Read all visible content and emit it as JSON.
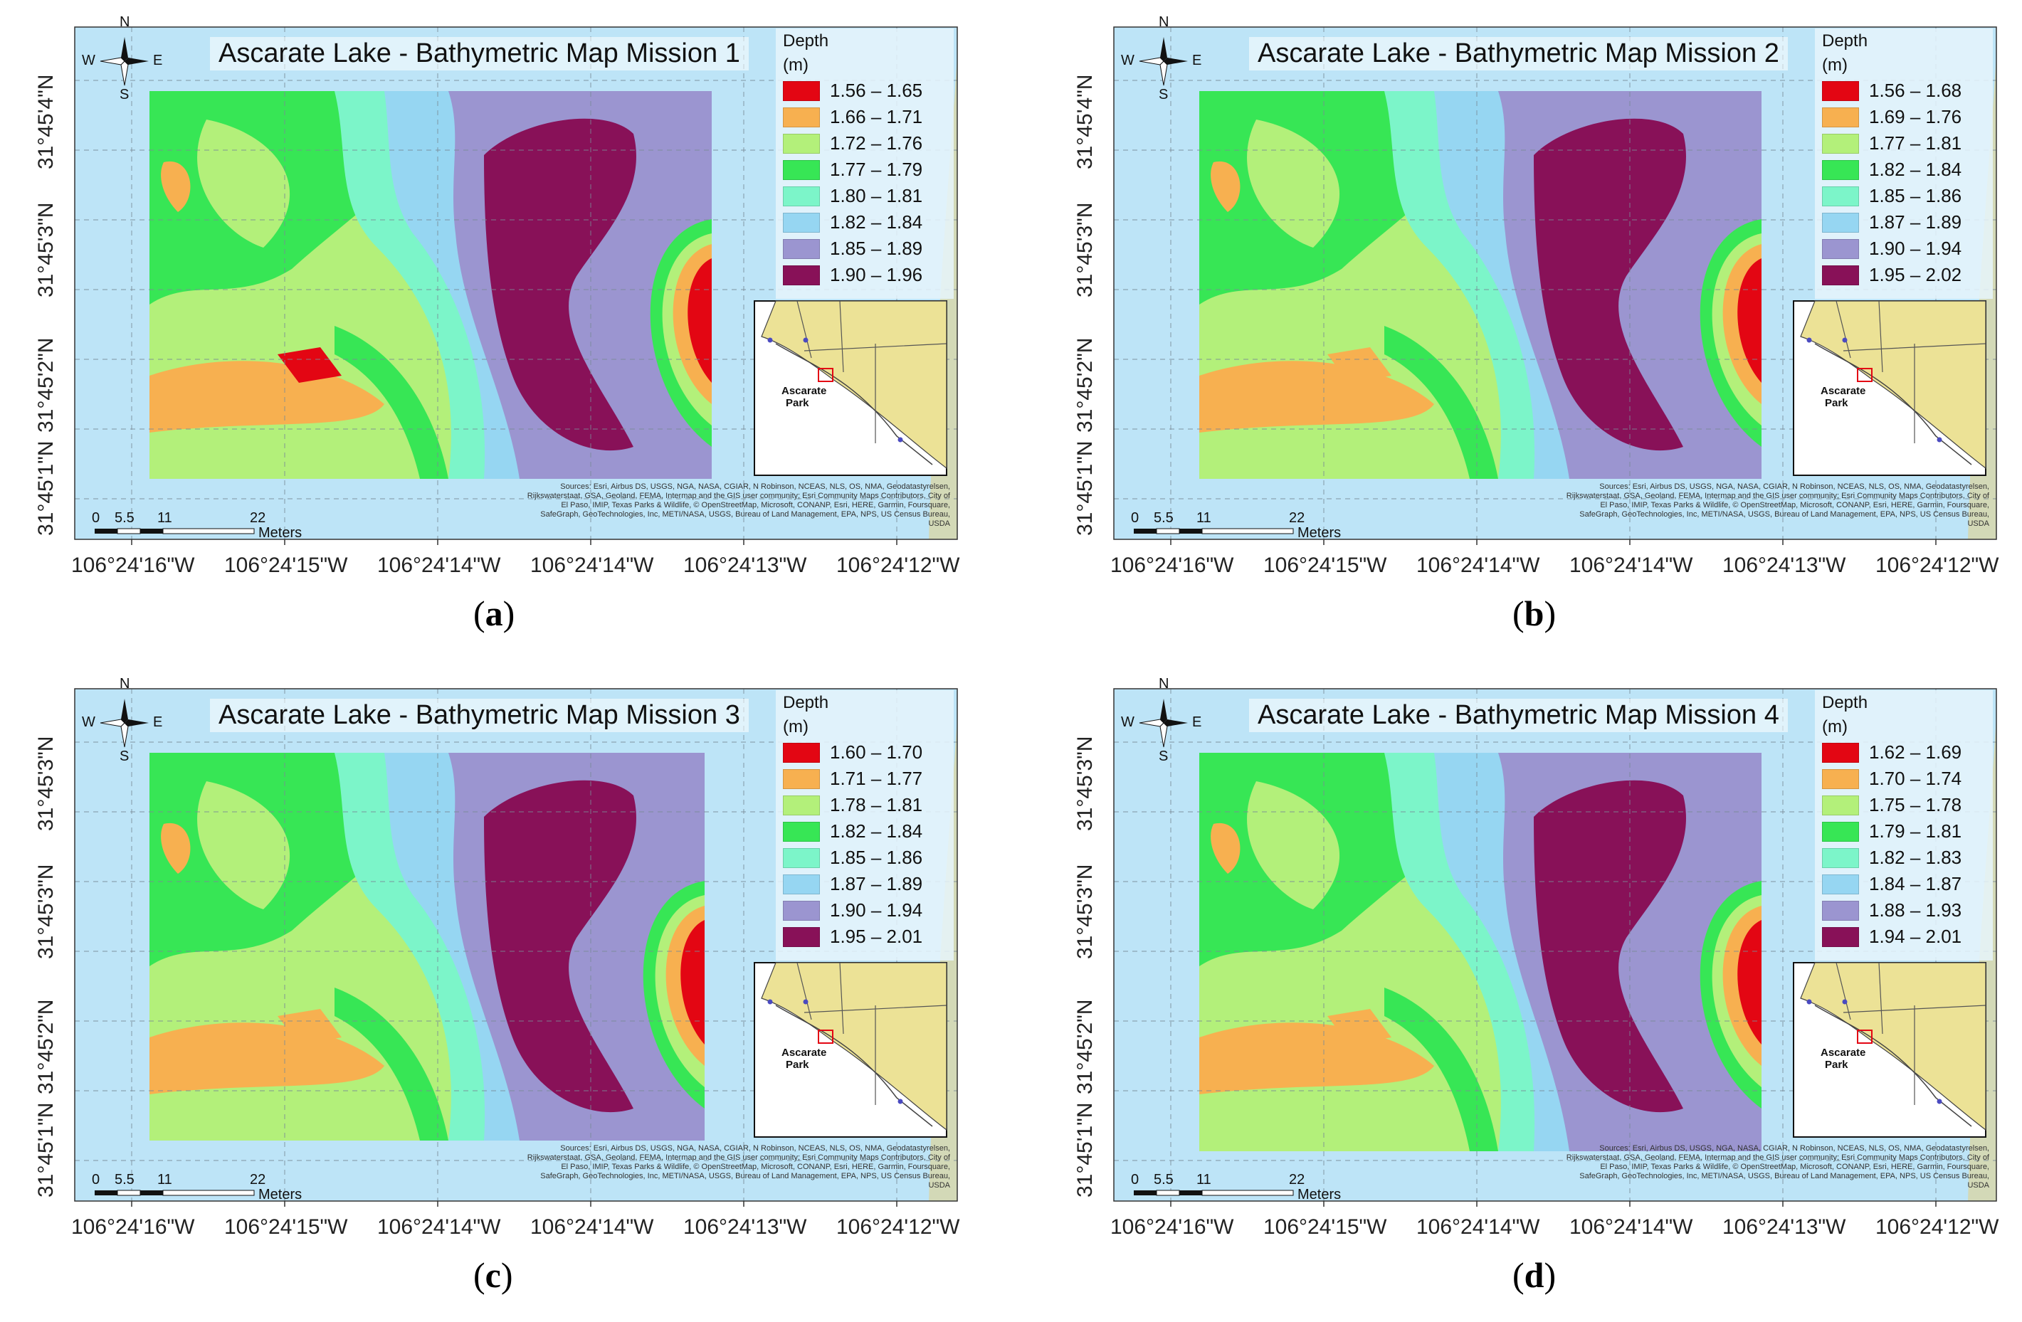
{
  "colors": {
    "water": "#bde4f7",
    "depth_classes": [
      "#e30613",
      "#f7b050",
      "#b3f07a",
      "#37e655",
      "#7cf5c9",
      "#96d6f2",
      "#9b95d0",
      "#881158"
    ],
    "land": "#e8e0a0"
  },
  "compass": {
    "n": "N",
    "s": "S",
    "e": "E",
    "w": "W"
  },
  "scalebar": {
    "ticks": [
      "0",
      "5.5",
      "11",
      "22"
    ],
    "unit": "Meters"
  },
  "inset": {
    "label_line1": "Ascarate",
    "label_line2": "Park"
  },
  "attribution": "Sources: Esri, Airbus DS, USGS, NGA, NASA, CGIAR, N Robinson, NCEAS, NLS, OS, NMA, Geodatastyrelsen, Rijkswaterstaat, GSA, Geoland, FEMA, Intermap and the GIS user community; Esri Community Maps Contributors, City of El Paso, IMIP, Texas Parks & Wildlife, © OpenStreetMap, Microsoft, CONANP, Esri, HERE, Garmin, Foursquare, SafeGraph, GeoTechnologies, Inc, METI/NASA, USGS, Bureau of Land Management, EPA, NPS, US Census Bureau, USDA",
  "panels": [
    {
      "title": "Ascarate Lake - Bathymetric Map Mission 1",
      "caption_letter": "a",
      "legend_title1": "Depth",
      "legend_title2": "(m)",
      "legend": [
        "1.56 – 1.65",
        "1.66 – 1.71",
        "1.72 – 1.76",
        "1.77 – 1.79",
        "1.80 – 1.81",
        "1.82 – 1.84",
        "1.85 – 1.89",
        "1.90 – 1.96"
      ],
      "y_labels": [
        "31°45'4\"N",
        "31°45'3\"N",
        "31°45'2\"N",
        "31°45'1\"N"
      ],
      "x_labels": [
        "106°24'16\"W",
        "106°24'15\"W",
        "106°24'14\"W",
        "106°24'14\"W",
        "106°24'13\"W",
        "106°24'12\"W"
      ]
    },
    {
      "title": "Ascarate Lake - Bathymetric Map Mission 2",
      "caption_letter": "b",
      "legend_title1": "Depth",
      "legend_title2": "(m)",
      "legend": [
        "1.56 – 1.68",
        "1.69 – 1.76",
        "1.77 – 1.81",
        "1.82 – 1.84",
        "1.85 – 1.86",
        "1.87 – 1.89",
        "1.90 – 1.94",
        "1.95 – 2.02"
      ],
      "y_labels": [
        "31°45'4\"N",
        "31°45'3\"N",
        "31°45'2\"N",
        "31°45'1\"N"
      ],
      "x_labels": [
        "106°24'16\"W",
        "106°24'15\"W",
        "106°24'14\"W",
        "106°24'14\"W",
        "106°24'13\"W",
        "106°24'12\"W"
      ]
    },
    {
      "title": "Ascarate Lake - Bathymetric Map Mission 3",
      "caption_letter": "c",
      "legend_title1": "Depth",
      "legend_title2": "(m)",
      "legend": [
        "1.60 – 1.70",
        "1.71 – 1.77",
        "1.78 – 1.81",
        "1.82 – 1.84",
        "1.85 – 1.86",
        "1.87 – 1.89",
        "1.90 – 1.94",
        "1.95 – 2.01"
      ],
      "y_labels": [
        "31°45'3\"N",
        "31°45'3\"N",
        "31°45'2\"N",
        "31°45'1\"N"
      ],
      "x_labels": [
        "106°24'16\"W",
        "106°24'15\"W",
        "106°24'14\"W",
        "106°24'14\"W",
        "106°24'13\"W",
        "106°24'12\"W"
      ]
    },
    {
      "title": "Ascarate Lake - Bathymetric Map Mission 4",
      "caption_letter": "d",
      "legend_title1": "Depth",
      "legend_title2": "(m)",
      "legend": [
        "1.62 – 1.69",
        "1.70 – 1.74",
        "1.75 – 1.78",
        "1.79 – 1.81",
        "1.82 – 1.83",
        "1.84 – 1.87",
        "1.88 – 1.93",
        "1.94 – 2.01"
      ],
      "y_labels": [
        "31°45'3\"N",
        "31°45'3\"N",
        "31°45'2\"N",
        "31°45'1\"N"
      ],
      "x_labels": [
        "106°24'16\"W",
        "106°24'15\"W",
        "106°24'14\"W",
        "106°24'14\"W",
        "106°24'13\"W",
        "106°24'12\"W"
      ]
    }
  ]
}
